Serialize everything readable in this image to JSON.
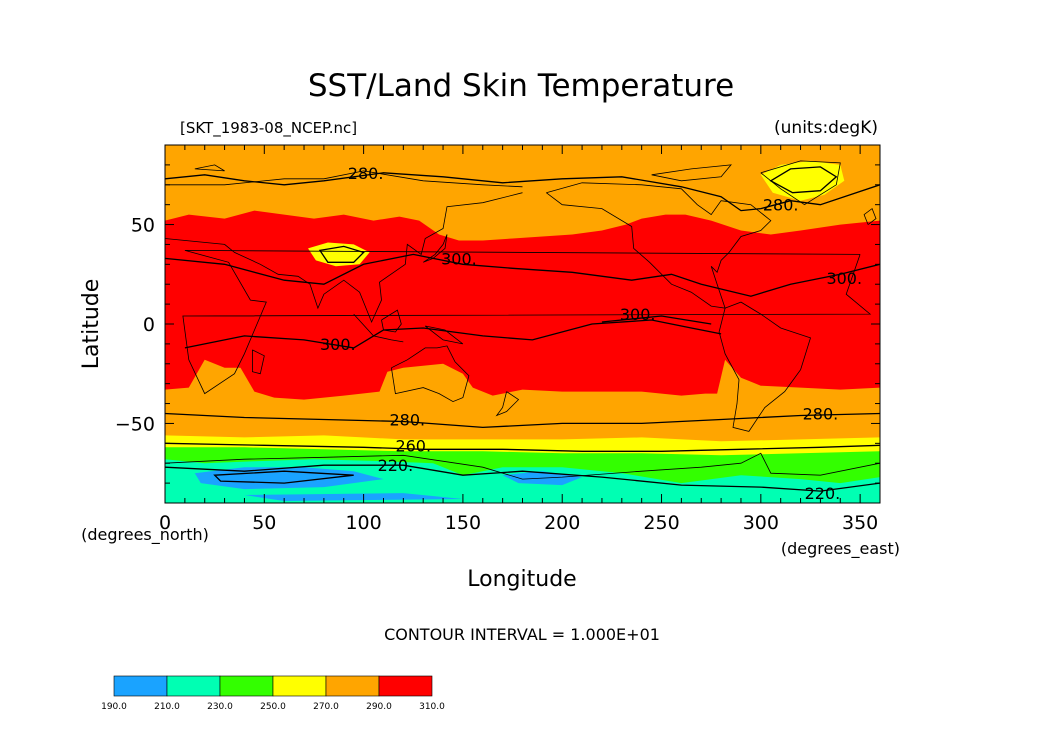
{
  "title": "SST/Land Skin Temperature",
  "file_label": "[SKT_1983-08_NCEP.nc]",
  "units_label": "(units:degK)",
  "x_axis": {
    "label": "Longitude",
    "unit_label": "(degrees_east)",
    "range": [
      0,
      360
    ],
    "ticks": [
      0,
      50,
      100,
      150,
      200,
      250,
      300,
      350
    ],
    "tick_labels": [
      "0",
      "50",
      "100",
      "150",
      "200",
      "250",
      "300",
      "350"
    ]
  },
  "y_axis": {
    "label": "Latitude",
    "unit_label": "(degrees_north)",
    "range": [
      -90,
      90
    ],
    "ticks": [
      50,
      0,
      -50
    ],
    "tick_labels": [
      "50",
      "0",
      "−50"
    ]
  },
  "contour_interval_text": "CONTOUR INTERVAL = 1.000E+01",
  "contour_labels": [
    {
      "text": "280.",
      "lon": 101,
      "lat": 75
    },
    {
      "text": "280.",
      "lon": 310,
      "lat": 59
    },
    {
      "text": "300.",
      "lon": 148,
      "lat": 32
    },
    {
      "text": "300.",
      "lon": 342,
      "lat": 22
    },
    {
      "text": "300.",
      "lon": 238,
      "lat": 4
    },
    {
      "text": "300.",
      "lon": 87,
      "lat": -11
    },
    {
      "text": "280.",
      "lon": 122,
      "lat": -49
    },
    {
      "text": "280.",
      "lon": 330,
      "lat": -46
    },
    {
      "text": "260.",
      "lon": 125,
      "lat": -62
    },
    {
      "text": "220.",
      "lon": 116,
      "lat": -72
    },
    {
      "text": "220.",
      "lon": 331,
      "lat": -86
    }
  ],
  "colorbar": {
    "levels": [
      "190.0",
      "210.0",
      "230.0",
      "250.0",
      "270.0",
      "290.0",
      "310.0"
    ],
    "colors": [
      "#1aa3ff",
      "#00ffb3",
      "#33ff00",
      "#ffff00",
      "#ffa500",
      "#ff0000"
    ]
  },
  "field_colors": {
    "lt210": "#1aa3ff",
    "lt230": "#00ffb3",
    "lt250": "#33ff00",
    "lt270": "#ffff00",
    "lt290": "#ffa500",
    "gt290": "#ff0000"
  }
}
